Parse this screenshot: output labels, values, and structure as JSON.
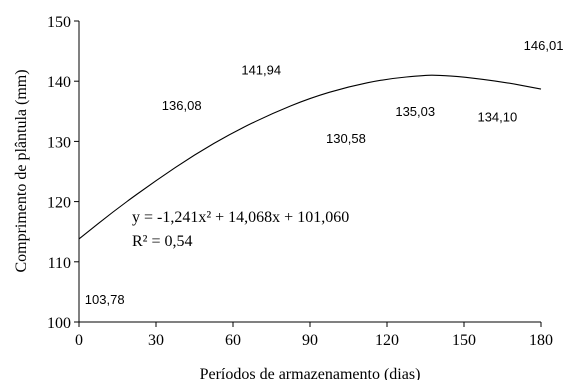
{
  "chart_data": {
    "type": "scatter",
    "xlabel": "Períodos de armazenamento (dias)",
    "ylabel": "Comprimento de plântula (mm)",
    "xlim": [
      0,
      180
    ],
    "ylim": [
      100,
      150
    ],
    "x_ticks": [
      "0",
      "30",
      "60",
      "90",
      "120",
      "150",
      "180"
    ],
    "y_ticks": [
      "100",
      "110",
      "120",
      "130",
      "140",
      "150"
    ],
    "grid": false,
    "data_labels": [
      {
        "x": 10,
        "y": 103.78,
        "label": "103,78"
      },
      {
        "x": 40,
        "y": 136.08,
        "label": "136,08"
      },
      {
        "x": 71,
        "y": 141.94,
        "label": "141,94"
      },
      {
        "x": 104,
        "y": 130.58,
        "label": "130,58"
      },
      {
        "x": 131,
        "y": 135.03,
        "label": "135,03"
      },
      {
        "x": 163,
        "y": 134.1,
        "label": "134,10"
      },
      {
        "x": 181,
        "y": 146.01,
        "label": "146,01"
      }
    ],
    "trendline": {
      "equation": "y = -1,241x² + 14,068x + 101,060",
      "r2": "R² = 0,54",
      "points": [
        [
          0,
          113.8
        ],
        [
          15,
          118.9
        ],
        [
          30,
          123.5
        ],
        [
          45,
          127.8
        ],
        [
          60,
          131.5
        ],
        [
          75,
          134.6
        ],
        [
          90,
          137.2
        ],
        [
          105,
          139.1
        ],
        [
          120,
          140.4
        ],
        [
          135,
          141.0
        ],
        [
          140,
          141.0
        ],
        [
          150,
          140.7
        ],
        [
          165,
          139.9
        ],
        [
          180,
          138.7
        ]
      ]
    }
  }
}
